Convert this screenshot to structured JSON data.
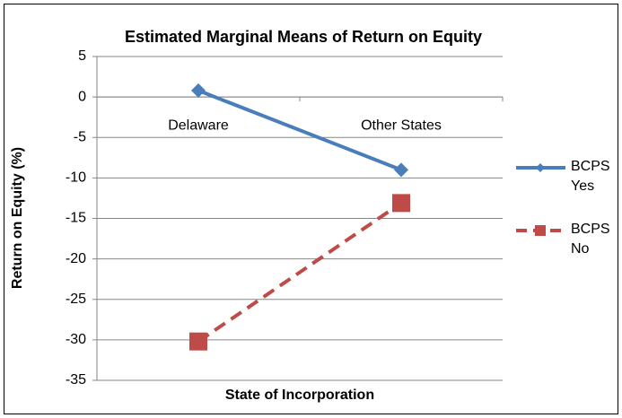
{
  "chart_data": {
    "type": "line",
    "title": "Estimated Marginal Means of Return on Equity",
    "x_label": "State of Incorporation",
    "y_label": "Return on Equity (%)",
    "categories": [
      "Delaware",
      "Other States"
    ],
    "series": [
      {
        "name": "BCPS Yes",
        "color": "#4a7ebb",
        "values": [
          0.8,
          -9
        ],
        "marker": "diamond",
        "dash": false
      },
      {
        "name": "BCPS No",
        "color": "#be4b48",
        "values": [
          -30.2,
          -13.1
        ],
        "marker": "square",
        "dash": true
      }
    ],
    "ylim": [
      -35,
      5
    ],
    "yticks": [
      -35,
      -30,
      -25,
      -20,
      -15,
      -10,
      -5,
      0,
      5
    ],
    "grid": true,
    "legend": "right"
  }
}
